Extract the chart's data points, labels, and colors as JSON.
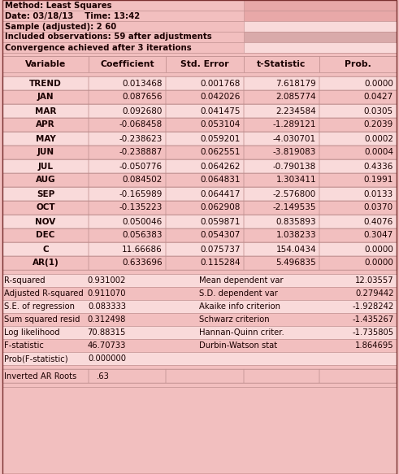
{
  "header_info": [
    "Method: Least Squares",
    "Date: 03/18/13    Time: 13:42",
    "Sample (adjusted): 2 60",
    "Included observations: 59 after adjustments",
    "Convergence achieved after 3 iterations"
  ],
  "col_headers": [
    "Variable",
    "Coefficient",
    "Std. Error",
    "t-Statistic",
    "Prob."
  ],
  "main_rows": [
    [
      "TREND",
      "0.013468",
      "0.001768",
      "7.618179",
      "0.0000"
    ],
    [
      "JAN",
      "0.087656",
      "0.042026",
      "2.085774",
      "0.0427"
    ],
    [
      "MAR",
      "0.092680",
      "0.041475",
      "2.234584",
      "0.0305"
    ],
    [
      "APR",
      "-0.068458",
      "0.053104",
      "-1.289121",
      "0.2039"
    ],
    [
      "MAY",
      "-0.238623",
      "0.059201",
      "-4.030701",
      "0.0002"
    ],
    [
      "JUN",
      "-0.238887",
      "0.062551",
      "-3.819083",
      "0.0004"
    ],
    [
      "JUL",
      "-0.050776",
      "0.064262",
      "-0.790138",
      "0.4336"
    ],
    [
      "AUG",
      "0.084502",
      "0.064831",
      "1.303411",
      "0.1991"
    ],
    [
      "SEP",
      "-0.165989",
      "0.064417",
      "-2.576800",
      "0.0133"
    ],
    [
      "OCT",
      "-0.135223",
      "0.062908",
      "-2.149535",
      "0.0370"
    ],
    [
      "NOV",
      "0.050046",
      "0.059871",
      "0.835893",
      "0.4076"
    ],
    [
      "DEC",
      "0.056383",
      "0.054307",
      "1.038233",
      "0.3047"
    ],
    [
      "C",
      "11.66686",
      "0.075737",
      "154.0434",
      "0.0000"
    ],
    [
      "AR(1)",
      "0.633696",
      "0.115284",
      "5.496835",
      "0.0000"
    ]
  ],
  "stats_left": [
    [
      "R-squared",
      "0.931002"
    ],
    [
      "Adjusted R-squared",
      "0.911070"
    ],
    [
      "S.E. of regression",
      "0.083333"
    ],
    [
      "Sum squared resid",
      "0.312498"
    ],
    [
      "Log likelihood",
      "70.88315"
    ],
    [
      "F-statistic",
      "46.70733"
    ],
    [
      "Prob(F-statistic)",
      "0.000000"
    ]
  ],
  "stats_right": [
    [
      "Mean dependent var",
      "12.03557"
    ],
    [
      "S.D. dependent var",
      "0.279442"
    ],
    [
      "Akaike info criterion",
      "-1.928242"
    ],
    [
      "Schwarz criterion",
      "-1.435267"
    ],
    [
      "Hannan-Quinn criter.",
      "-1.735805"
    ],
    [
      "Durbin-Watson stat",
      "1.864695"
    ]
  ],
  "inverted_ar": ".63",
  "bg_light": "#F2BFBF",
  "bg_lighter": "#F9DADA",
  "bg_dark": "#E8A8A8",
  "bg_header_accent": "#D9AAAA",
  "text_color": "#1A0000",
  "border_color": "#C09090",
  "fig_w": 4.91,
  "fig_h": 5.83,
  "dpi": 100
}
